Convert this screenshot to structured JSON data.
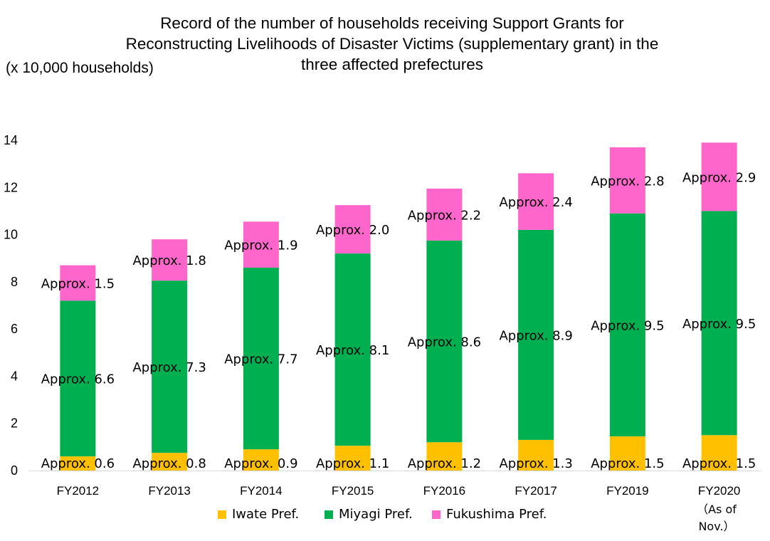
{
  "chart_data": {
    "type": "bar",
    "stacked": true,
    "title_lines": [
      "Record of the number of households receiving Support Grants for",
      "Reconstructing Livelihoods of Disaster Victims (supplementary grant) in the",
      "three affected prefectures"
    ],
    "ylabel": "(x 10,000 households)",
    "xlabel": "",
    "categories": [
      "FY2012",
      "FY2013",
      "FY2014",
      "FY2015",
      "FY2016",
      "FY2017",
      "FY2019",
      "FY2020"
    ],
    "category_note": "（As of Nov.）",
    "ylim": [
      0,
      14
    ],
    "yticks": [
      0,
      2,
      4,
      6,
      8,
      10,
      12,
      14
    ],
    "series": [
      {
        "name": "Iwate Pref.",
        "color": "#FFC000",
        "values": [
          0.6,
          0.75,
          0.9,
          1.05,
          1.2,
          1.3,
          1.45,
          1.5
        ],
        "labels": [
          "Approx. 0.6",
          "Approx. 0.8",
          "Approx. 0.9",
          "Approx. 1.1",
          "Approx. 1.2",
          "Approx. 1.3",
          "Approx. 1.5",
          "Approx. 1.5"
        ]
      },
      {
        "name": "Miyagi Pref.",
        "color": "#00B050",
        "values": [
          6.6,
          7.3,
          7.7,
          8.15,
          8.55,
          8.9,
          9.45,
          9.5
        ],
        "labels": [
          "Approx. 6.6",
          "Approx. 7.3",
          "Approx. 7.7",
          "Approx. 8.1",
          "Approx. 8.6",
          "Approx. 8.9",
          "Approx. 9.5",
          "Approx. 9.5"
        ]
      },
      {
        "name": "Fukushima Pref.",
        "color": "#FF66CC",
        "values": [
          1.5,
          1.75,
          1.95,
          2.05,
          2.2,
          2.4,
          2.8,
          2.9
        ],
        "labels": [
          "Approx. 1.5",
          "Approx. 1.8",
          "Approx. 1.9",
          "Approx. 2.0",
          "Approx. 2.2",
          "Approx. 2.4",
          "Approx. 2.8",
          "Approx. 2.9"
        ]
      }
    ],
    "grid": false,
    "legend_position": "bottom"
  }
}
